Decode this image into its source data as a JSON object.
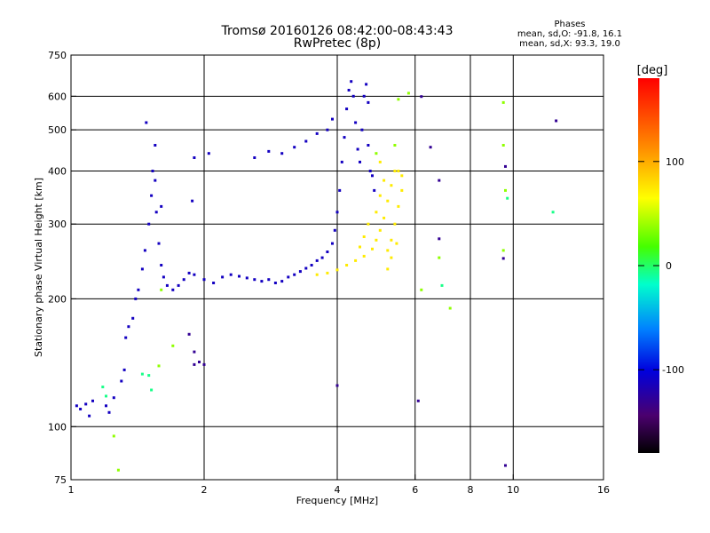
{
  "title": {
    "line1": "Tromsø 20160126 08:42:00-08:43:43",
    "line2": "RwPretec (8p)"
  },
  "phase_info": {
    "header": "Phases",
    "o_mode": "mean, sd,O: -91.8, 16.1",
    "x_mode": "mean, sd,X:  93.3, 19.0"
  },
  "chart_data": {
    "type": "scatter",
    "xlabel": "Frequency [MHz]",
    "ylabel": "Stationary phase Virtual Height [km]",
    "x_scale": "log",
    "y_scale": "log",
    "xlim": [
      1,
      16
    ],
    "ylim": [
      75,
      750
    ],
    "x_ticks": [
      1,
      2,
      4,
      6,
      8,
      10,
      16
    ],
    "y_ticks": [
      75,
      100,
      200,
      300,
      400,
      500,
      600,
      750
    ],
    "grid_x": [
      2,
      4,
      6,
      8,
      10
    ],
    "grid_y": [
      100,
      200,
      300,
      400,
      500,
      600
    ],
    "colorbar": {
      "label": "[deg]",
      "range": [
        -180,
        180
      ],
      "ticks": [
        100,
        0,
        -100
      ],
      "colormap": "rainbow"
    },
    "series": [
      {
        "phase_deg": -95,
        "points": [
          [
            1.03,
            112
          ],
          [
            1.05,
            110
          ],
          [
            1.08,
            113
          ],
          [
            1.1,
            106
          ],
          [
            1.12,
            115
          ],
          [
            1.2,
            112
          ],
          [
            1.22,
            108
          ],
          [
            1.25,
            117
          ],
          [
            1.3,
            128
          ],
          [
            1.32,
            136
          ],
          [
            1.33,
            162
          ],
          [
            1.35,
            172
          ],
          [
            1.38,
            180
          ],
          [
            1.4,
            200
          ],
          [
            1.42,
            210
          ],
          [
            1.45,
            235
          ],
          [
            1.47,
            260
          ],
          [
            1.5,
            300
          ],
          [
            1.52,
            350
          ],
          [
            1.53,
            400
          ],
          [
            1.55,
            460
          ],
          [
            1.55,
            380
          ],
          [
            1.56,
            320
          ],
          [
            1.58,
            270
          ],
          [
            1.6,
            240
          ],
          [
            1.62,
            225
          ],
          [
            1.65,
            215
          ],
          [
            1.7,
            210
          ],
          [
            1.75,
            215
          ],
          [
            1.8,
            222
          ],
          [
            1.85,
            230
          ],
          [
            1.9,
            228
          ],
          [
            2.0,
            222
          ],
          [
            2.1,
            218
          ],
          [
            2.2,
            225
          ],
          [
            2.3,
            228
          ],
          [
            2.4,
            226
          ],
          [
            2.5,
            224
          ],
          [
            2.6,
            222
          ],
          [
            2.7,
            220
          ],
          [
            2.8,
            222
          ],
          [
            2.9,
            218
          ],
          [
            3.0,
            220
          ],
          [
            3.1,
            225
          ],
          [
            3.2,
            228
          ],
          [
            3.3,
            232
          ],
          [
            3.4,
            236
          ],
          [
            3.5,
            240
          ],
          [
            3.6,
            246
          ],
          [
            3.7,
            250
          ],
          [
            3.8,
            258
          ],
          [
            3.9,
            270
          ],
          [
            3.95,
            290
          ],
          [
            4.0,
            320
          ],
          [
            4.05,
            360
          ],
          [
            4.1,
            420
          ],
          [
            4.15,
            480
          ],
          [
            4.2,
            560
          ],
          [
            4.25,
            620
          ],
          [
            4.3,
            650
          ],
          [
            4.35,
            600
          ],
          [
            4.4,
            520
          ],
          [
            4.45,
            450
          ],
          [
            4.5,
            420
          ],
          [
            4.55,
            500
          ],
          [
            4.6,
            600
          ],
          [
            4.65,
            640
          ],
          [
            4.7,
            580
          ],
          [
            4.7,
            460
          ],
          [
            4.75,
            400
          ],
          [
            4.8,
            390
          ],
          [
            4.85,
            360
          ],
          [
            2.6,
            430
          ],
          [
            2.8,
            445
          ],
          [
            3.0,
            440
          ],
          [
            3.2,
            455
          ],
          [
            3.4,
            470
          ],
          [
            3.6,
            490
          ],
          [
            3.8,
            500
          ],
          [
            3.9,
            530
          ],
          [
            1.9,
            430
          ],
          [
            1.88,
            340
          ],
          [
            2.05,
            440
          ],
          [
            1.48,
            520
          ],
          [
            1.6,
            330
          ]
        ]
      },
      {
        "phase_deg": 95,
        "points": [
          [
            3.6,
            228
          ],
          [
            3.8,
            230
          ],
          [
            4.0,
            234
          ],
          [
            4.2,
            240
          ],
          [
            4.4,
            246
          ],
          [
            4.6,
            252
          ],
          [
            4.8,
            262
          ],
          [
            4.9,
            275
          ],
          [
            5.0,
            290
          ],
          [
            5.1,
            310
          ],
          [
            5.2,
            340
          ],
          [
            5.3,
            370
          ],
          [
            5.4,
            400
          ],
          [
            5.2,
            260
          ],
          [
            5.3,
            275
          ],
          [
            5.4,
            300
          ],
          [
            5.5,
            330
          ],
          [
            5.6,
            360
          ],
          [
            5.6,
            390
          ],
          [
            5.5,
            400
          ],
          [
            4.9,
            320
          ],
          [
            5.0,
            350
          ],
          [
            5.1,
            380
          ],
          [
            5.0,
            420
          ],
          [
            4.7,
            300
          ],
          [
            4.6,
            280
          ],
          [
            4.5,
            265
          ],
          [
            5.3,
            250
          ],
          [
            5.45,
            270
          ],
          [
            5.2,
            235
          ]
        ]
      },
      {
        "phase_deg": 60,
        "points": [
          [
            1.25,
            95
          ],
          [
            1.28,
            79
          ],
          [
            1.6,
            210
          ],
          [
            1.7,
            155
          ],
          [
            1.58,
            139
          ],
          [
            5.5,
            590
          ],
          [
            5.8,
            610
          ],
          [
            7.2,
            190
          ],
          [
            6.2,
            210
          ],
          [
            6.8,
            250
          ],
          [
            9.5,
            580
          ],
          [
            9.5,
            460
          ],
          [
            9.6,
            360
          ],
          [
            9.5,
            260
          ],
          [
            4.9,
            440
          ],
          [
            5.4,
            460
          ]
        ]
      },
      {
        "phase_deg": -120,
        "points": [
          [
            1.85,
            165
          ],
          [
            1.9,
            150
          ],
          [
            1.95,
            142
          ],
          [
            2.0,
            140
          ],
          [
            6.1,
            115
          ],
          [
            6.5,
            455
          ],
          [
            6.8,
            380
          ],
          [
            9.6,
            81
          ],
          [
            9.6,
            410
          ],
          [
            9.5,
            249
          ],
          [
            12.5,
            525
          ],
          [
            6.2,
            599
          ],
          [
            6.8,
            277
          ],
          [
            4.0,
            125
          ],
          [
            1.9,
            140
          ]
        ]
      },
      {
        "phase_deg": 20,
        "points": [
          [
            1.2,
            118
          ],
          [
            1.18,
            124
          ],
          [
            1.5,
            132
          ],
          [
            1.52,
            122
          ],
          [
            6.9,
            215
          ],
          [
            12.3,
            320
          ],
          [
            9.7,
            345
          ],
          [
            1.45,
            133
          ]
        ]
      }
    ]
  }
}
